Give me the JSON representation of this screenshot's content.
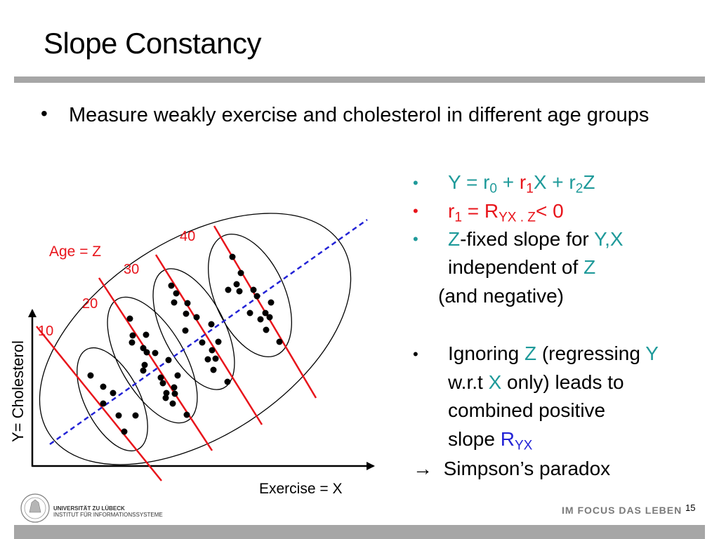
{
  "slide": {
    "title": "Slope Constancy",
    "main_bullet": "Measure weakly exercise and cholesterol in different age groups",
    "page_number": "15"
  },
  "right_panel": {
    "eq1": {
      "y": "Y",
      "eq": " = r",
      "s0": "0",
      "plus1": " + ",
      "r1": "r",
      "s1": "1",
      "x": "X + r",
      "s2": "2",
      "z": "Z"
    },
    "eq2": {
      "r": "r",
      "s1": "1",
      "eq": " = R",
      "sub": "YX . Z",
      "lt": "< 0"
    },
    "line3": {
      "z": "Z",
      "mid": "-fixed slope for ",
      "yx": "Y,X"
    },
    "line4": {
      "text": "independent of ",
      "z": "Z"
    },
    "line5": "(and negative)",
    "line6": {
      "a": "Ignoring ",
      "z": "Z",
      "b": " (regressing ",
      "y": "Y"
    },
    "line7": {
      "a": "w.r.t ",
      "x": "X",
      "b": " only)  leads to"
    },
    "line8": "combined positive",
    "line9": {
      "a": "slope ",
      "r": "R",
      "sub": "YX"
    },
    "line10": {
      "arrow": "→",
      "text": "Simpson’s paradox"
    },
    "bullet_symbol": "•"
  },
  "diagram": {
    "age_label": "Age = Z",
    "y_axis_label": "Y= Cholesterol",
    "x_axis_label": "Exercise = X",
    "age_groups": [
      "10",
      "20",
      "30",
      "40"
    ]
  },
  "footer": {
    "university": "UNIVERSITÄT ZU LÜBECK",
    "institute": "INSTITUT FÜR INFORMATIONSSYSTEME",
    "brand": "IM FOCUS DAS LEBEN"
  },
  "colors": {
    "teal": "#1f9a9a",
    "red": "#e8141b",
    "blue": "#2323d6",
    "rule": "#a6a6a6"
  }
}
